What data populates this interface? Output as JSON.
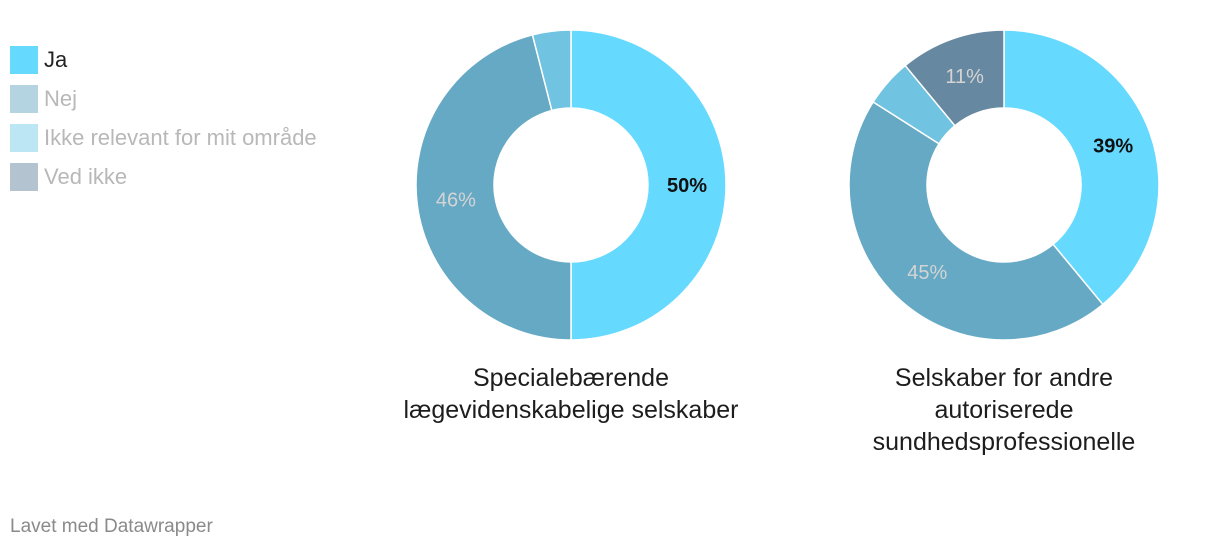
{
  "legend": [
    {
      "label": "Ja",
      "color": "#66d9ff",
      "active": true
    },
    {
      "label": "Nej",
      "color": "#b4d4e2",
      "active": false
    },
    {
      "label": "Ikke relevant for mit område",
      "color": "#bde6f4",
      "active": false
    },
    {
      "label": "Ved ikke",
      "color": "#b4c3d0",
      "active": false
    }
  ],
  "chart_data": [
    {
      "type": "pie",
      "title": "Specialebærende lægevidenskabelige selskaber",
      "slices": [
        {
          "label": "Ja",
          "value": 50,
          "display": "50%",
          "color": "#66d9ff"
        },
        {
          "label": "Nej",
          "value": 46,
          "display": "46%",
          "color": "#65a9c4"
        },
        {
          "label": "Ikke relevant for mit område",
          "value": 4,
          "display": "",
          "color": "#70c3e1"
        },
        {
          "label": "Ved ikke",
          "value": 0,
          "display": "",
          "color": "#6788a1"
        }
      ]
    },
    {
      "type": "pie",
      "title": "Selskaber for andre autoriserede sundhedsprofessionelle",
      "slices": [
        {
          "label": "Ja",
          "value": 39,
          "display": "39%",
          "color": "#66d9ff"
        },
        {
          "label": "Nej",
          "value": 45,
          "display": "45%",
          "color": "#65a9c4"
        },
        {
          "label": "Ikke relevant for mit område",
          "value": 5,
          "display": "",
          "color": "#70c3e1"
        },
        {
          "label": "Ved ikke",
          "value": 11,
          "display": "11%",
          "color": "#6788a1"
        }
      ]
    }
  ],
  "footer": "Lavet med Datawrapper"
}
